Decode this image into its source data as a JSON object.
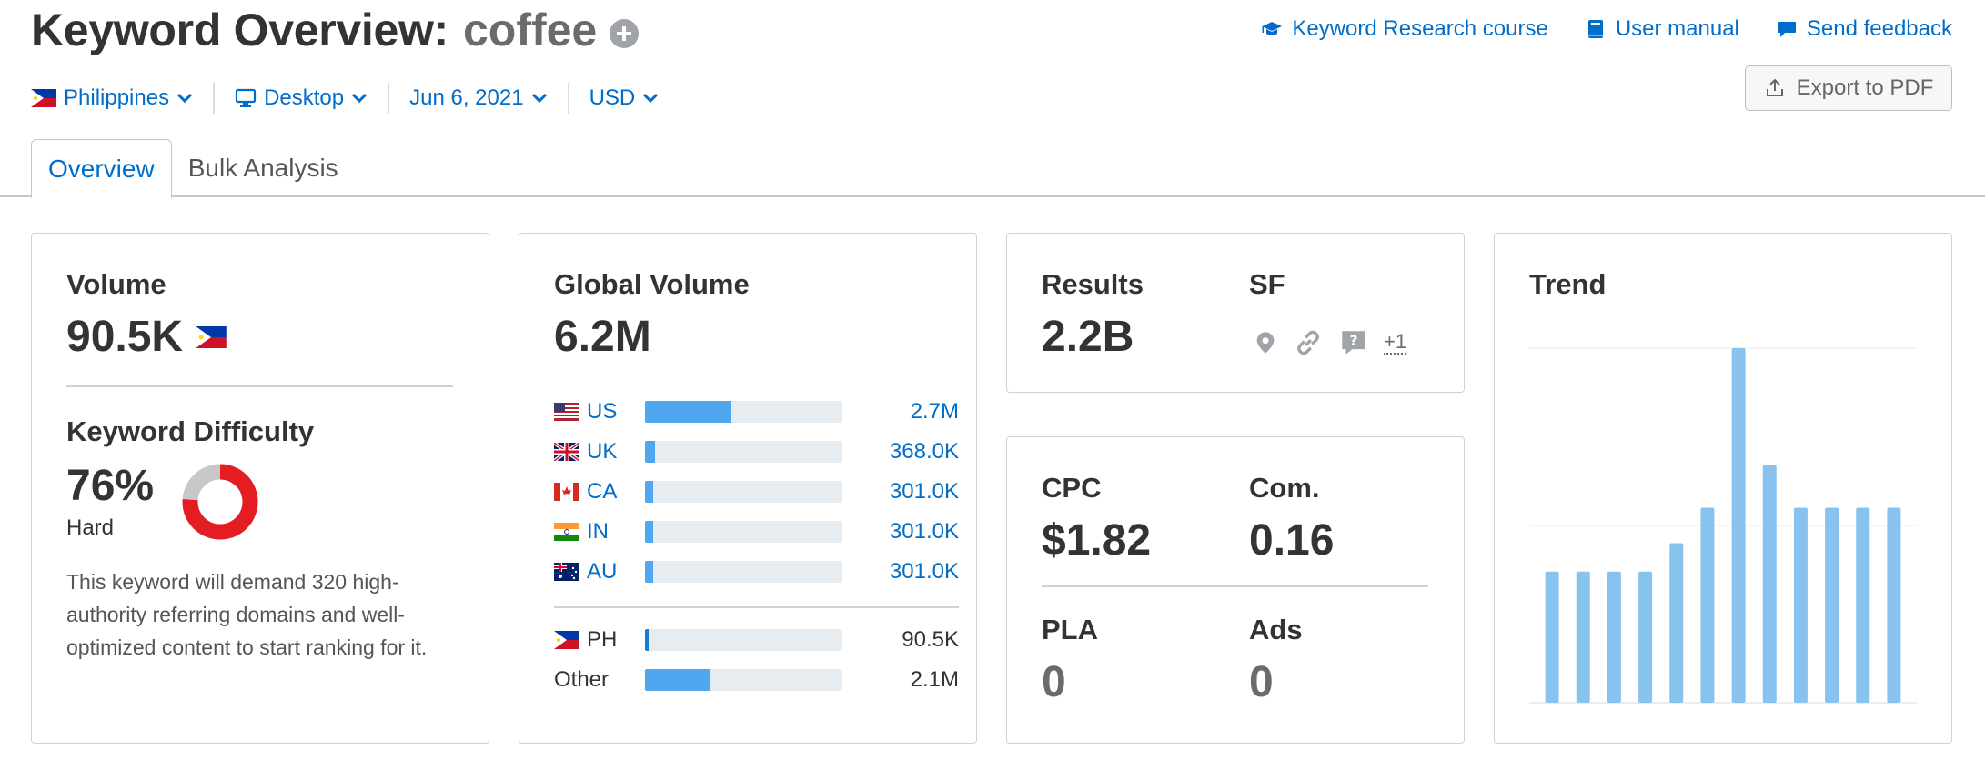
{
  "header": {
    "title": "Keyword Overview:",
    "keyword": "coffee",
    "links": [
      {
        "label": "Keyword Research course",
        "icon": "graduation-cap-icon"
      },
      {
        "label": "User manual",
        "icon": "book-icon"
      },
      {
        "label": "Send feedback",
        "icon": "speech-bubble-icon"
      }
    ],
    "export_label": "Export to PDF"
  },
  "filters": {
    "country": "Philippines",
    "device": "Desktop",
    "date": "Jun 6, 2021",
    "currency": "USD"
  },
  "tabs": [
    {
      "label": "Overview",
      "active": true
    },
    {
      "label": "Bulk Analysis",
      "active": false
    }
  ],
  "volume": {
    "label": "Volume",
    "value": "90.5K"
  },
  "difficulty": {
    "label": "Keyword Difficulty",
    "value": "76%",
    "percent": 76,
    "level": "Hard",
    "description": "This keyword will demand 320 high-authority referring domains and well-optimized content to start ranking for it.",
    "color": "#e41d23"
  },
  "global_volume": {
    "label": "Global Volume",
    "value": "6.2M",
    "rows": [
      {
        "country": "US",
        "value": "2.7M",
        "share": 0.44
      },
      {
        "country": "UK",
        "value": "368.0K",
        "share": 0.05
      },
      {
        "country": "CA",
        "value": "301.0K",
        "share": 0.04
      },
      {
        "country": "IN",
        "value": "301.0K",
        "share": 0.04
      },
      {
        "country": "AU",
        "value": "301.0K",
        "share": 0.04
      }
    ],
    "rows_secondary": [
      {
        "country": "PH",
        "value": "90.5K",
        "share": 0.02
      },
      {
        "country": "Other",
        "value": "2.1M",
        "share": 0.33
      }
    ]
  },
  "results": {
    "label": "Results",
    "value": "2.2B",
    "sf_label": "SF",
    "sf_icons": [
      "map-pin-icon",
      "link-icon",
      "question-icon"
    ],
    "sf_more": "+1"
  },
  "cpc": {
    "cpc_label": "CPC",
    "cpc_value": "$1.82",
    "com_label": "Com.",
    "com_value": "0.16",
    "pla_label": "PLA",
    "pla_value": "0",
    "ads_label": "Ads",
    "ads_value": "0"
  },
  "trend": {
    "label": "Trend",
    "chart_data": {
      "type": "bar",
      "values": [
        0.37,
        0.37,
        0.37,
        0.37,
        0.45,
        0.55,
        1.0,
        0.67,
        0.55,
        0.55,
        0.55,
        0.55
      ],
      "ylim": [
        0,
        1
      ],
      "color": "#88c3f0"
    }
  }
}
